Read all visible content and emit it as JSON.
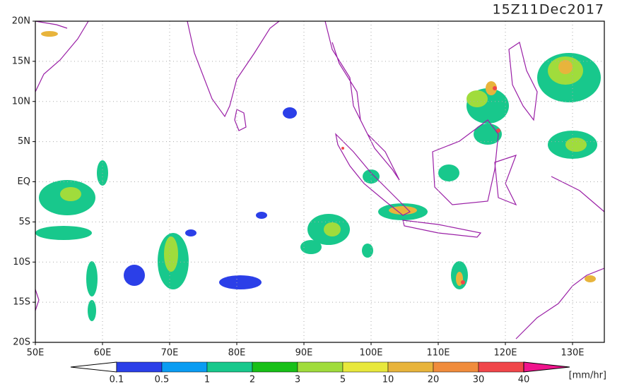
{
  "header": {
    "title": "15Z11Dec2017"
  },
  "map": {
    "lat_labels": [
      "20N",
      "15N",
      "10N",
      "5N",
      "EQ",
      "5S",
      "10S",
      "15S",
      "20S"
    ],
    "lon_labels": [
      "50E",
      "60E",
      "70E",
      "80E",
      "90E",
      "100E",
      "110E",
      "120E",
      "130E"
    ]
  },
  "colorbar": {
    "ticks": [
      0.1,
      0.5,
      1,
      2,
      3,
      5,
      10,
      20,
      30,
      40
    ],
    "colors": [
      "#2b3fe8",
      "#0a9cf2",
      "#18c88c",
      "#18c018",
      "#a0dc3c",
      "#e8e83c",
      "#e8b43c",
      "#f08c3c",
      "#f0464a"
    ],
    "under_color": "#ffffff",
    "over_color": "#f0148c",
    "unit": "[mm/hr]"
  }
}
